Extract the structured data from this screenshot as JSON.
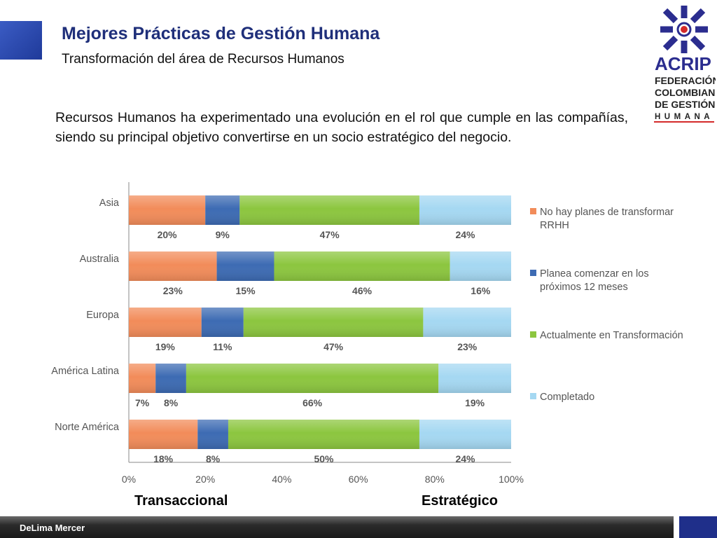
{
  "header": {
    "title": "Mejores Prácticas de Gestión Humana",
    "subtitle": "Transformación del área de Recursos Humanos"
  },
  "logo": {
    "name": "ACRIP",
    "lines": [
      "FEDERACIÓN",
      "COLOMBIANA",
      "DE GESTIÓN",
      "HUMANA"
    ],
    "icon": "acrip-logo-icon"
  },
  "intro_text": "Recursos Humanos ha experimentado una evolución en el rol que cumple en las compañías, siendo su principal objetivo convertirse en un socio estratégico del negocio.",
  "chart_data": {
    "type": "bar",
    "orientation": "horizontal",
    "stacked": true,
    "categories": [
      "Asia",
      "Australia",
      "Europa",
      "América Latina",
      "Norte América"
    ],
    "series": [
      {
        "name": "No hay planes de transformar RRHH",
        "color": "#f28c5a",
        "values": [
          20,
          23,
          19,
          7,
          18
        ]
      },
      {
        "name": "Planea comenzar en los próximos 12 meses",
        "color": "#3d6bb3",
        "values": [
          9,
          15,
          11,
          8,
          8
        ]
      },
      {
        "name": "Actualmente en Transformación",
        "color": "#8cc63f",
        "values": [
          47,
          46,
          47,
          66,
          50
        ]
      },
      {
        "name": "Completado",
        "color": "#a5d8f2",
        "values": [
          24,
          16,
          23,
          19,
          24
        ]
      }
    ],
    "xlim": [
      0,
      100
    ],
    "xticks": [
      "0%",
      "20%",
      "40%",
      "60%",
      "80%",
      "100%"
    ],
    "legend_position": "right",
    "grid": false,
    "data_labels": true
  },
  "axis_labels": {
    "left": "Transaccional",
    "right": "Estratégico"
  },
  "footer": {
    "text": "DeLima Mercer"
  }
}
